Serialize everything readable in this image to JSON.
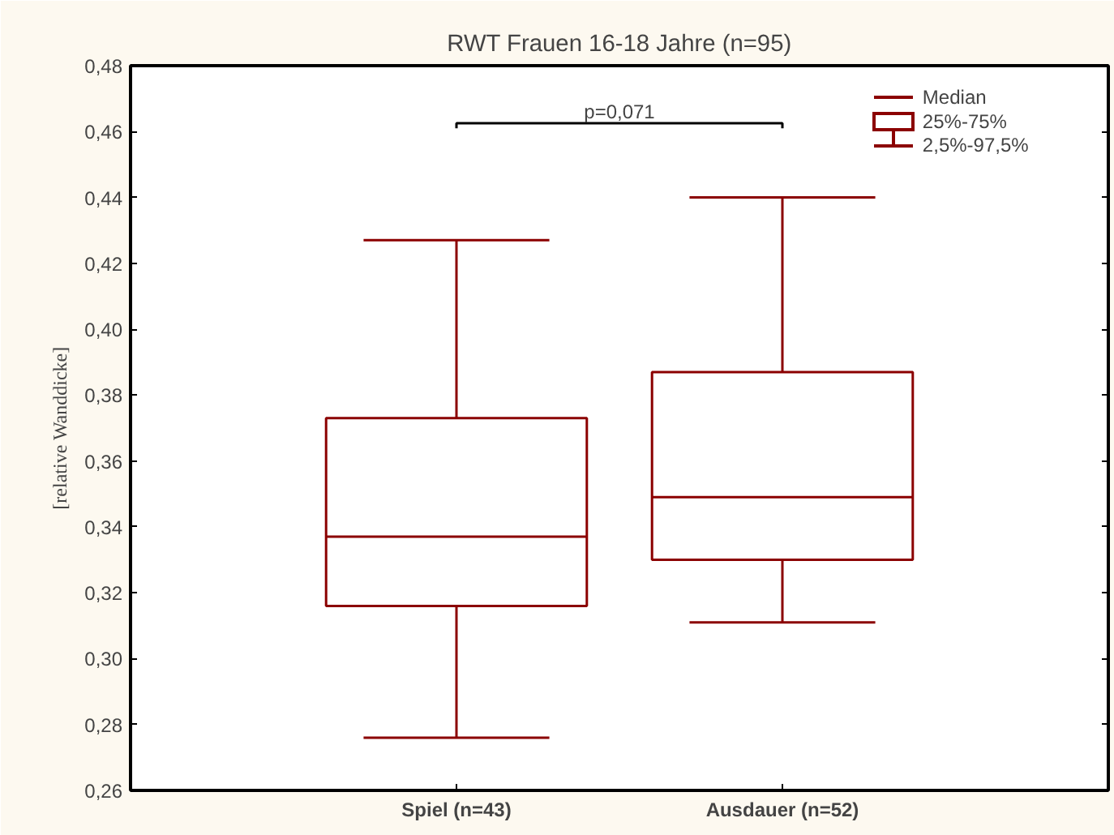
{
  "chart_data": {
    "type": "box",
    "title": "RWT Frauen 16-18 Jahre (n=95)",
    "ylabel": "[relative Wanddicke]",
    "categories": [
      "Spiel (n=43)",
      "Ausdauer (n=52)"
    ],
    "color": "#8b0000",
    "boxes": [
      {
        "low": 0.276,
        "q1": 0.316,
        "median": 0.337,
        "q3": 0.373,
        "high": 0.427
      },
      {
        "low": 0.311,
        "q1": 0.33,
        "median": 0.349,
        "q3": 0.387,
        "high": 0.44
      }
    ],
    "ylim": [
      0.26,
      0.48
    ],
    "yticks": [
      {
        "value": 0.26,
        "label": "0,26"
      },
      {
        "value": 0.28,
        "label": "0,28"
      },
      {
        "value": 0.3,
        "label": "0,30"
      },
      {
        "value": 0.32,
        "label": "0,32"
      },
      {
        "value": 0.34,
        "label": "0,34"
      },
      {
        "value": 0.36,
        "label": "0,36"
      },
      {
        "value": 0.38,
        "label": "0,38"
      },
      {
        "value": 0.4,
        "label": "0,40"
      },
      {
        "value": 0.42,
        "label": "0,42"
      },
      {
        "value": 0.44,
        "label": "0,44"
      },
      {
        "value": 0.46,
        "label": "0,46"
      },
      {
        "value": 0.48,
        "label": "0,48"
      }
    ],
    "annotations": [
      "p=0,071",
      "Median",
      "25%-75%",
      "2,5%-97,5%"
    ],
    "grid": false
  }
}
